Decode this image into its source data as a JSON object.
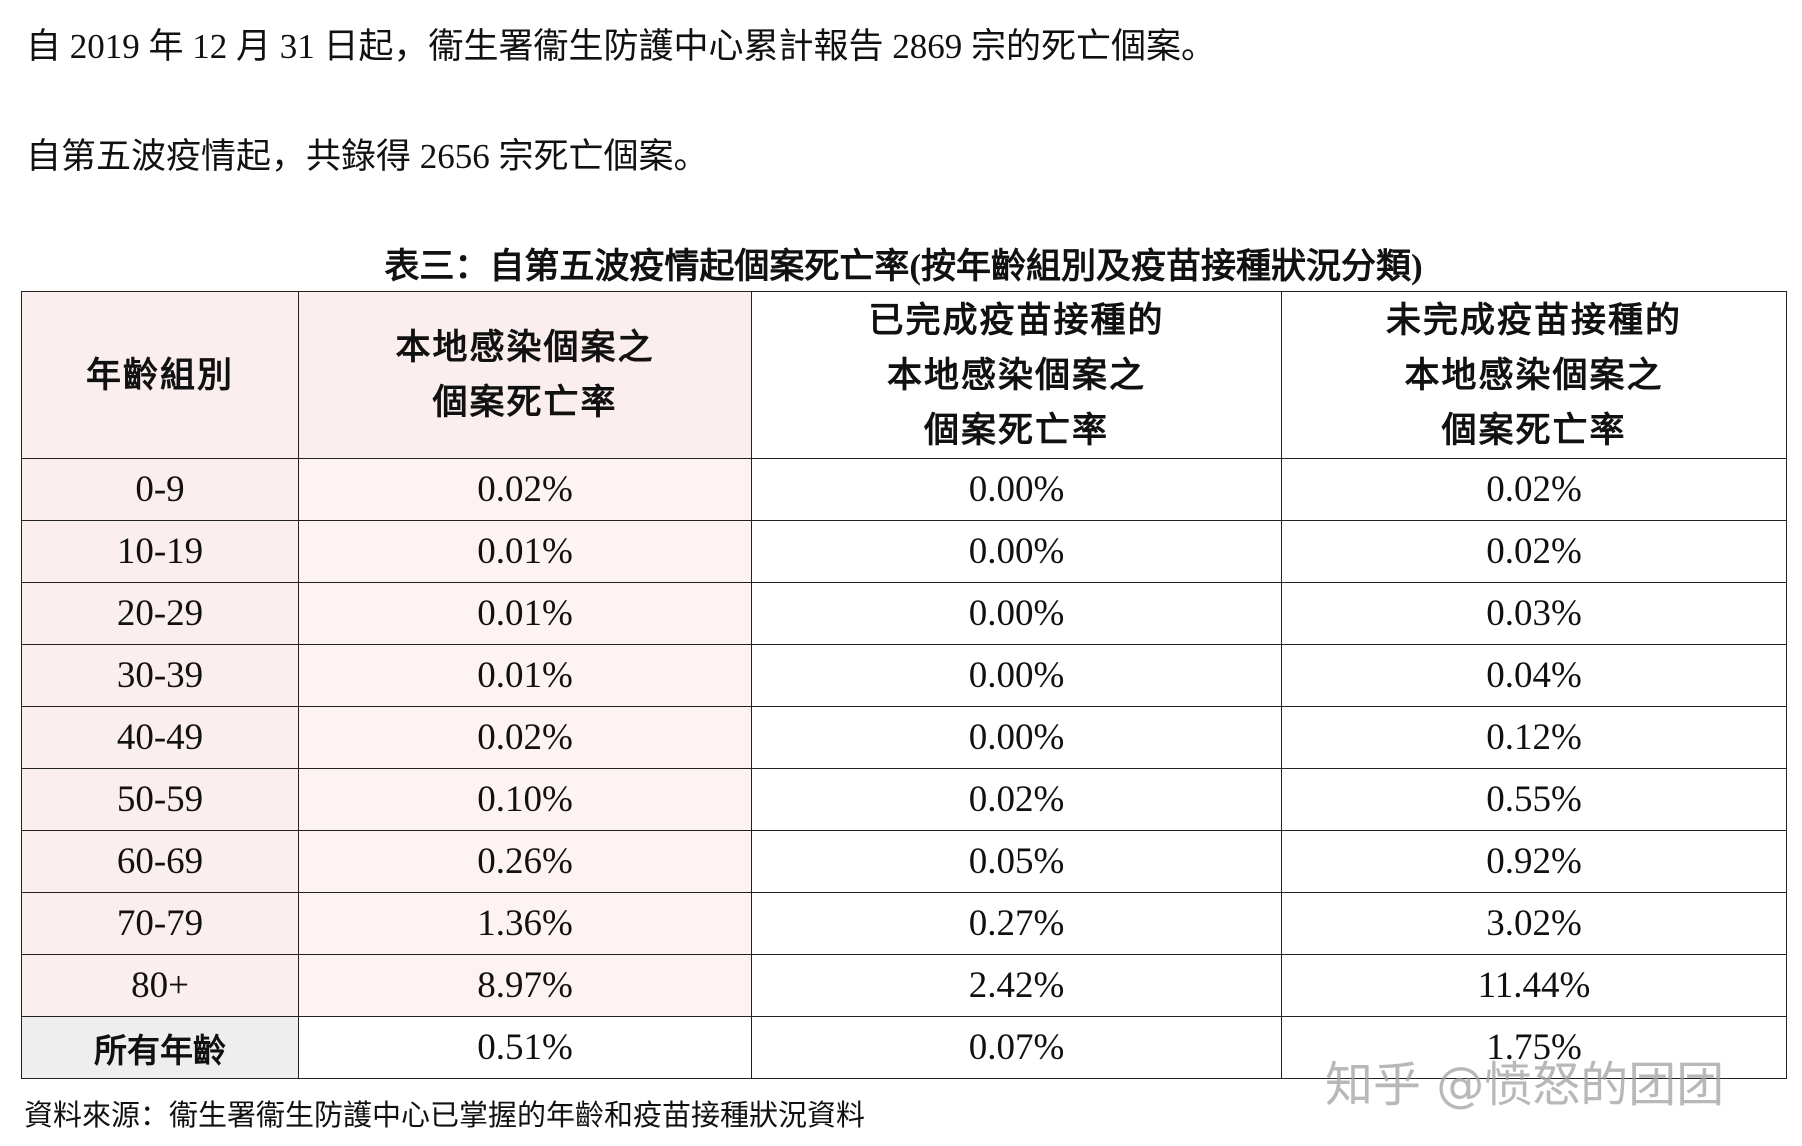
{
  "paragraphs": [
    "自 2019 年 12 月 31 日起，衞生署衞生防護中心累計報告 2869 宗的死亡個案。",
    "自第五波疫情起，共錄得 2656 宗死亡個案。"
  ],
  "table": {
    "title": "表三：自第五波疫情起個案死亡率(按年齡組別及疫苗接種狀況分類)",
    "headers": [
      [
        "年齡組別"
      ],
      [
        "本地感染個案之",
        "個案死亡率"
      ],
      [
        "已完成疫苗接種的",
        "本地感染個案之",
        "個案死亡率"
      ],
      [
        "未完成疫苗接種的",
        "本地感染個案之",
        "個案死亡率"
      ]
    ],
    "rows": [
      [
        "0-9",
        "0.02%",
        "0.00%",
        "0.02%"
      ],
      [
        "10-19",
        "0.01%",
        "0.00%",
        "0.02%"
      ],
      [
        "20-29",
        "0.01%",
        "0.00%",
        "0.03%"
      ],
      [
        "30-39",
        "0.01%",
        "0.00%",
        "0.04%"
      ],
      [
        "40-49",
        "0.02%",
        "0.00%",
        "0.12%"
      ],
      [
        "50-59",
        "0.10%",
        "0.02%",
        "0.55%"
      ],
      [
        "60-69",
        "0.26%",
        "0.05%",
        "0.92%"
      ],
      [
        "70-79",
        "1.36%",
        "0.27%",
        "3.02%"
      ],
      [
        "80+",
        "8.97%",
        "2.42%",
        "11.44%"
      ],
      [
        "所有年齡",
        "0.51%",
        "0.07%",
        "1.75%"
      ]
    ]
  },
  "source": "資料來源：衞生署衞生防護中心已掌握的年齡和疫苗接種狀況資料",
  "watermark": "知乎 @愤怒的团团"
}
